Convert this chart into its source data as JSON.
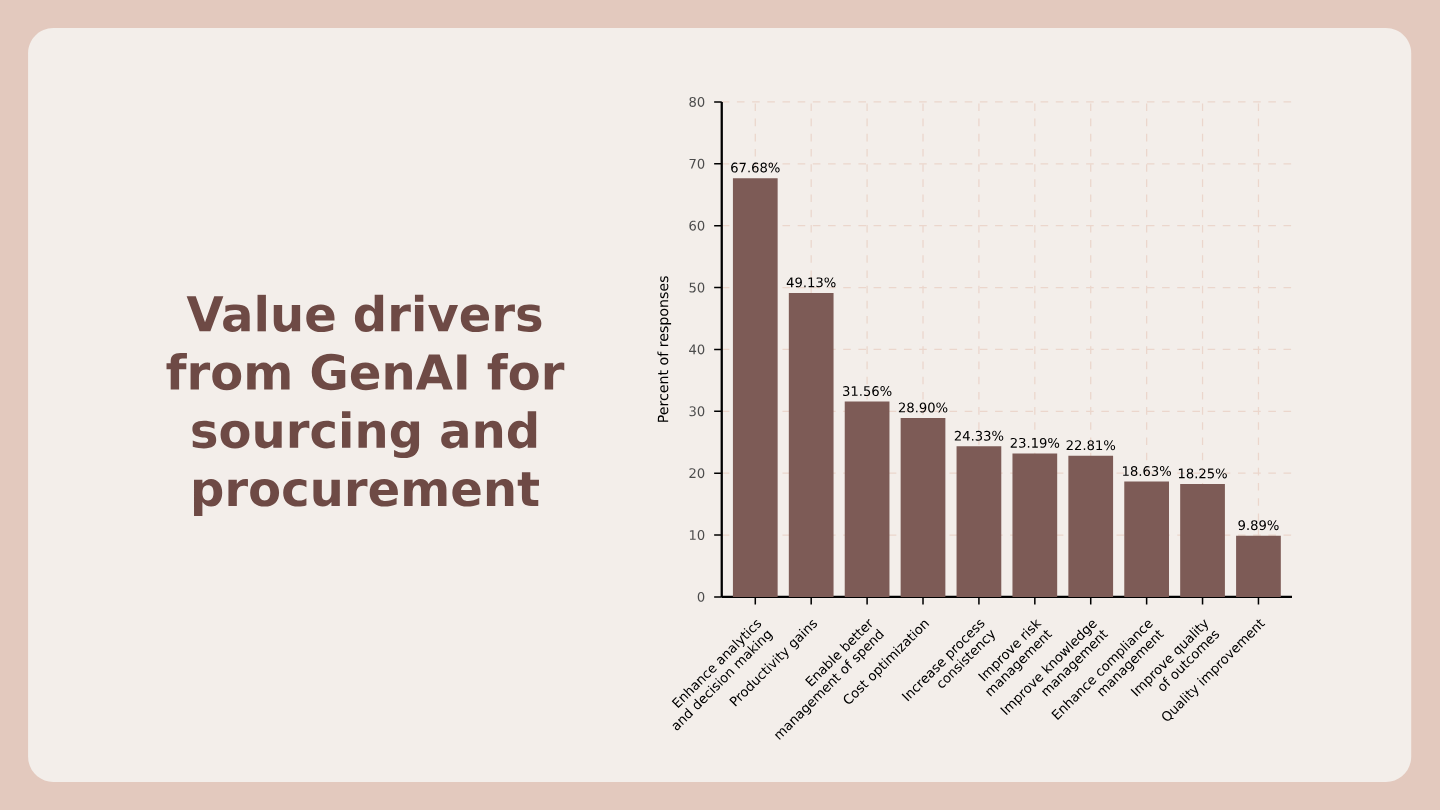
{
  "chart_data": {
    "type": "bar",
    "title": "Value drivers from GenAI for sourcing and procurement",
    "ylabel": "Percent of responses",
    "categories": [
      "Enhance analytics and decision making",
      "Productivity gains",
      "Enable better management of spend",
      "Cost optimization",
      "Increase process consistency",
      "Improve risk management",
      "Improve knowledge management",
      "Enhance compliance management",
      "Improve quality of outcomes",
      "Quality improvement"
    ],
    "values": [
      67.68,
      49.13,
      31.56,
      28.9,
      24.33,
      23.19,
      22.81,
      18.63,
      18.25,
      9.89
    ],
    "value_labels": [
      "67.68%",
      "49.13%",
      "31.56%",
      "28.90%",
      "24.33%",
      "23.19%",
      "22.81%",
      "18.63%",
      "18.25%",
      "9.89%"
    ],
    "color": "#7d5b56",
    "ylim": [
      0,
      80
    ],
    "yticks": [
      0,
      10,
      20,
      30,
      40,
      50,
      60,
      70,
      80
    ],
    "grid": true
  }
}
